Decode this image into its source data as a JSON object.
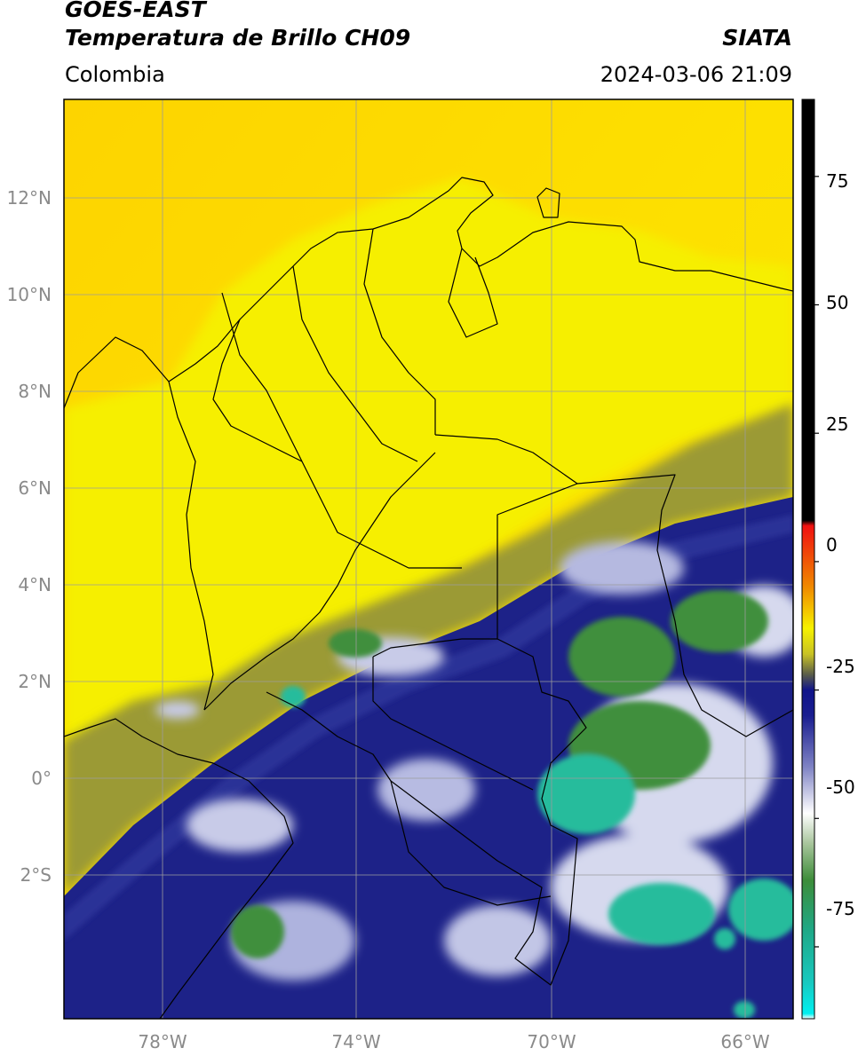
{
  "header": {
    "satellite": "GOES-EAST",
    "product": "Temperatura de Brillo CH09",
    "agency": "SIATA",
    "region": "Colombia",
    "datetime": "2024-03-06 21:09"
  },
  "axes": {
    "lat_labels": [
      "12°N",
      "10°N",
      "8°N",
      "6°N",
      "4°N",
      "2°N",
      "0°",
      "2°S"
    ],
    "lon_labels": [
      "78°W",
      "74°W",
      "70°W",
      "66°W"
    ]
  },
  "colorbar": {
    "tick_labels": [
      "75",
      "50",
      "25",
      "0",
      "-25",
      "-50",
      "-75"
    ],
    "stops": [
      {
        "value": 90,
        "color": "#000000"
      },
      {
        "value": 8,
        "color": "#000000"
      },
      {
        "value": 7,
        "color": "#f01010"
      },
      {
        "value": -5,
        "color": "#f08a00"
      },
      {
        "value": -13,
        "color": "#f6f200"
      },
      {
        "value": -18,
        "color": "#c8c225"
      },
      {
        "value": -22,
        "color": "#5a5d4a"
      },
      {
        "value": -25,
        "color": "#10148a"
      },
      {
        "value": -30,
        "color": "#1a1e90"
      },
      {
        "value": -40,
        "color": "#7f83c4"
      },
      {
        "value": -49,
        "color": "#ffffff"
      },
      {
        "value": -55,
        "color": "#a6c49a"
      },
      {
        "value": -62,
        "color": "#3d8d3a"
      },
      {
        "value": -72,
        "color": "#1ea988"
      },
      {
        "value": -82,
        "color": "#18c9c0"
      },
      {
        "value": -88,
        "color": "#00f0f0"
      },
      {
        "value": -89,
        "color": "#ffffff"
      }
    ]
  },
  "map_colors": {
    "warm_sea": "#fcd900",
    "land": "#f7ee00",
    "transition": "#9b9a35",
    "cold_blue": "#1d2288",
    "cold_light": "#c8cbe8",
    "very_cold_green": "#3f8f3c",
    "coldest_cyan": "#27bc9c",
    "grid": "#9c9c9c",
    "borders": "#000000"
  }
}
